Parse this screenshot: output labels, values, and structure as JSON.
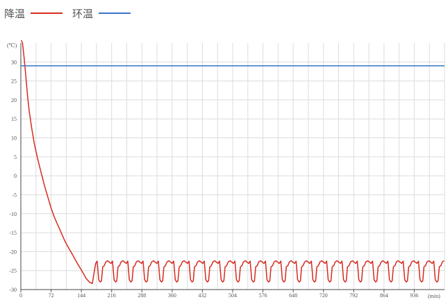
{
  "legend": [
    {
      "label": "降温",
      "color": "#d62a20"
    },
    {
      "label": "环温",
      "color": "#3a74c7"
    }
  ],
  "chart_data": {
    "type": "line",
    "title": "",
    "y_unit_label": "(℃)",
    "x_unit_label": "(min)",
    "xlim": [
      0,
      1008
    ],
    "ylim": [
      -30,
      35
    ],
    "grid": true,
    "legend_position": "top-left",
    "y_ticks": [
      30,
      25,
      20,
      15,
      10,
      5,
      0,
      -5,
      -10,
      -15,
      -20,
      -25,
      -30
    ],
    "x_ticks": [
      0,
      72,
      144,
      216,
      288,
      360,
      432,
      504,
      576,
      648,
      720,
      792,
      864,
      936
    ],
    "series": [
      {
        "name": "降温",
        "color": "#d62a20",
        "x": [
          0,
          4,
          8,
          12,
          16,
          20,
          26,
          32,
          40,
          48,
          56,
          64,
          72,
          80,
          88,
          96,
          104,
          112,
          120,
          128,
          136,
          144,
          150,
          153,
          156,
          160,
          163,
          166,
          170
        ],
        "y": [
          36,
          35,
          31,
          26,
          21,
          17,
          12.5,
          8.5,
          4.5,
          1,
          -2.5,
          -5.5,
          -8.5,
          -11,
          -13,
          -15,
          -17,
          -18.7,
          -20.2,
          -21.8,
          -23.4,
          -24.8,
          -26,
          -26.6,
          -27.2,
          -27.6,
          -28,
          -28.2,
          -28.4
        ],
        "cycle": {
          "start": 170,
          "end": 1000,
          "period": 36.4,
          "high": -22.5,
          "low": -28
        }
      },
      {
        "name": "环温",
        "color": "#3a74c7",
        "x": [
          0,
          1008
        ],
        "y": [
          29,
          29
        ]
      }
    ]
  }
}
